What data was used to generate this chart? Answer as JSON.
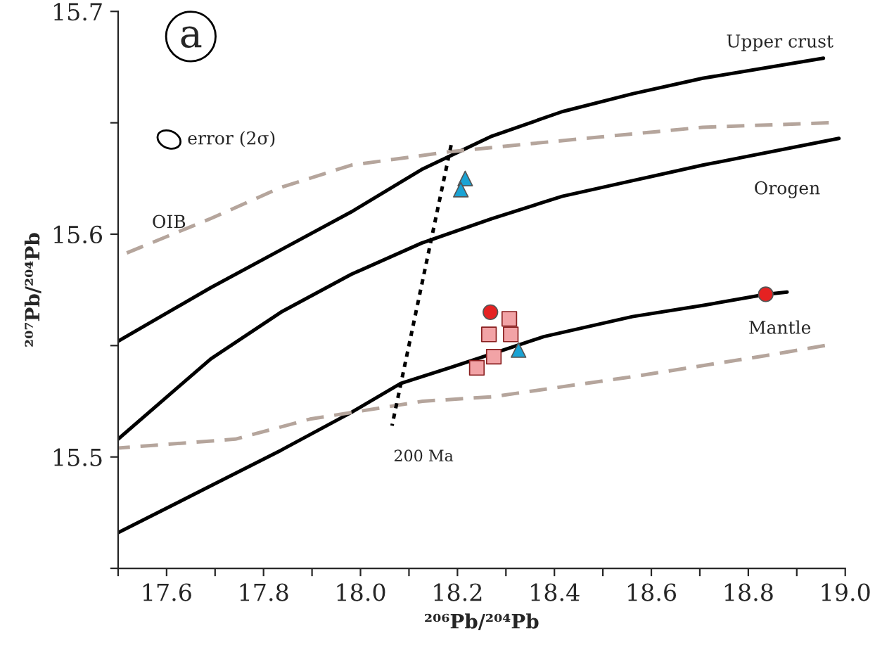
{
  "chart_data": {
    "type": "line",
    "xlabel": "²⁰⁶Pb/²⁰⁴Pb",
    "ylabel": "²⁰⁷Pb/²⁰⁴Pb",
    "xlim": [
      17.5,
      19.0
    ],
    "ylim": [
      15.45,
      15.7
    ],
    "xticks": [
      {
        "value": 17.5,
        "label": null
      },
      17.6,
      {
        "value": 17.7,
        "label": null
      },
      17.8,
      {
        "value": 17.9,
        "label": null
      },
      {
        "value": 18.0,
        "label": "18.0"
      },
      {
        "value": 18.1,
        "label": null
      },
      18.2,
      {
        "value": 18.3,
        "label": null
      },
      18.4,
      {
        "value": 18.5,
        "label": null
      },
      18.6,
      {
        "value": 18.7,
        "label": null
      },
      18.8,
      {
        "value": 18.9,
        "label": null
      },
      {
        "value": 19.0,
        "label": "19.0"
      }
    ],
    "yticks": [
      {
        "value": 15.45,
        "label": null
      },
      15.5,
      {
        "value": 15.55,
        "label": null
      },
      15.6,
      {
        "value": 15.65,
        "label": null
      },
      15.7
    ],
    "grid": false,
    "series": [
      {
        "color": "#000000",
        "line_style": "solid",
        "x": [
          17.5,
          17.691,
          17.836,
          17.981,
          18.126,
          18.271,
          18.416,
          18.561,
          18.706,
          18.955
        ],
        "values": [
          15.552,
          15.576,
          15.593,
          15.61,
          15.629,
          15.644,
          15.655,
          15.663,
          15.67,
          15.679
        ]
      },
      {
        "color": "#000000",
        "line_style": "solid",
        "x": [
          17.5,
          17.691,
          17.836,
          17.981,
          18.126,
          18.271,
          18.416,
          18.561,
          18.706,
          18.987
        ],
        "values": [
          15.508,
          15.544,
          15.565,
          15.582,
          15.596,
          15.607,
          15.617,
          15.624,
          15.631,
          15.643
        ]
      },
      {
        "color": "#000000",
        "line_style": "solid",
        "x": [
          17.5,
          17.691,
          17.836,
          17.981,
          18.083,
          18.184,
          18.378,
          18.561,
          18.706,
          18.836,
          18.88
        ],
        "values": [
          15.466,
          15.487,
          15.503,
          15.52,
          15.533,
          15.54,
          15.554,
          15.563,
          15.568,
          15.573,
          15.574
        ]
      },
      {
        "color": "#b5a59c",
        "line_style": "dashed",
        "x": [
          17.5,
          17.691,
          17.836,
          17.981,
          18.184,
          18.416,
          18.706,
          18.966
        ],
        "values": [
          15.59,
          15.607,
          15.621,
          15.631,
          15.637,
          15.642,
          15.648,
          15.65
        ]
      },
      {
        "color": "#b5a59c",
        "line_style": "dashed",
        "x": [
          17.5,
          17.742,
          17.896,
          18.128,
          18.271,
          18.561,
          18.851,
          18.958
        ],
        "values": [
          15.504,
          15.508,
          15.517,
          15.525,
          15.527,
          15.536,
          15.546,
          15.55
        ]
      },
      {
        "color": "#000000",
        "line_style": "dotted",
        "x": [
          18.065,
          18.187
        ],
        "values": [
          15.514,
          15.64
        ]
      },
      {
        "type": "scatter",
        "color": "#1aa3d4",
        "marker": "triangle",
        "x": [
          18.216,
          18.207,
          18.326
        ],
        "values": [
          15.625,
          15.62,
          15.548
        ]
      },
      {
        "type": "scatter",
        "color": "#f2a3a6",
        "marker": "square",
        "x": [
          18.265,
          18.307,
          18.31,
          18.275,
          18.24
        ],
        "values": [
          15.555,
          15.562,
          15.555,
          15.545,
          15.54
        ]
      },
      {
        "type": "scatter",
        "color": "#e52222",
        "marker": "circle",
        "x": [
          18.268,
          18.836
        ],
        "values": [
          15.565,
          15.573
        ]
      }
    ],
    "annotations": [
      "a",
      "error (2σ)",
      "Upper crust",
      "Orogen",
      "OIB",
      "Mantle",
      "200 Ma"
    ]
  }
}
